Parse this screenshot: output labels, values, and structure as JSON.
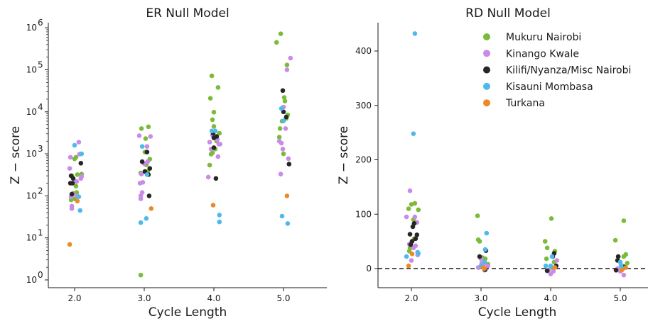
{
  "chart_data": [
    {
      "type": "scatter",
      "title": "ER Null Model",
      "xlabel": "Cycle Length",
      "ylabel": "Z − score",
      "yscale": "log",
      "ylim": [
        0.7,
        1400000
      ],
      "xlim": [
        1.5,
        5.5
      ],
      "x_ticks": [
        2.0,
        3.0,
        4.0,
        5.0
      ],
      "x_tick_labels": [
        "2.0",
        "3.0",
        "4.0",
        "5.0"
      ],
      "y_ticks": [
        1,
        10,
        100,
        1000,
        10000,
        100000,
        1000000
      ],
      "y_tick_labels": [
        [
          "10",
          "0"
        ],
        [
          "10",
          "1"
        ],
        [
          "10",
          "2"
        ],
        [
          "10",
          "3"
        ],
        [
          "10",
          "4"
        ],
        [
          "10",
          "5"
        ],
        [
          "10",
          "6"
        ]
      ],
      "grid": false,
      "series": [
        {
          "name": "Mukuru Nairobi",
          "color": "#7bbb3a",
          "points": [
            [
              1.95,
              80
            ],
            [
              2.0,
              85
            ],
            [
              1.98,
              115
            ],
            [
              2.03,
              120
            ],
            [
              2.02,
              170
            ],
            [
              1.96,
              300
            ],
            [
              2.04,
              320
            ],
            [
              2.0,
              760
            ],
            [
              2.02,
              830
            ],
            [
              2.1,
              330
            ],
            [
              2.95,
              1.3
            ],
            [
              2.96,
              4000
            ],
            [
              3.06,
              4400
            ],
            [
              3.02,
              2300
            ],
            [
              3.01,
              1100
            ],
            [
              2.95,
              350
            ],
            [
              3.05,
              380
            ],
            [
              3.03,
              550
            ],
            [
              3.08,
              750
            ],
            [
              3.94,
              540
            ],
            [
              3.96,
              980
            ],
            [
              3.98,
              1050
            ],
            [
              4.02,
              1300
            ],
            [
              4.04,
              2000
            ],
            [
              4.08,
              3100
            ],
            [
              4.0,
              4500
            ],
            [
              3.98,
              6500
            ],
            [
              4.0,
              9800
            ],
            [
              3.95,
              21000
            ],
            [
              4.06,
              38000
            ],
            [
              3.97,
              72000
            ],
            [
              4.9,
              450000
            ],
            [
              4.96,
              720000
            ],
            [
              5.05,
              130000
            ],
            [
              5.02,
              18000
            ],
            [
              5.01,
              22000
            ],
            [
              4.98,
              6000
            ],
            [
              5.04,
              7000
            ],
            [
              5.06,
              8500
            ],
            [
              4.95,
              4000
            ],
            [
              4.94,
              2500
            ],
            [
              5.0,
              1000
            ]
          ]
        },
        {
          "name": "Kinango Kwale",
          "color": "#c98be8",
          "points": [
            [
              1.96,
              50
            ],
            [
              1.96,
              57
            ],
            [
              1.95,
              95
            ],
            [
              1.98,
              110
            ],
            [
              2.04,
              100
            ],
            [
              2.03,
              220
            ],
            [
              2.09,
              260
            ],
            [
              2.1,
              290
            ],
            [
              2.07,
              980
            ],
            [
              2.06,
              1900
            ],
            [
              1.94,
              830
            ],
            [
              1.93,
              450
            ],
            [
              2.95,
              85
            ],
            [
              2.95,
              100
            ],
            [
              2.97,
              120
            ],
            [
              2.94,
              200
            ],
            [
              2.96,
              330
            ],
            [
              3.0,
              580
            ],
            [
              3.05,
              650
            ],
            [
              3.04,
              1500
            ],
            [
              2.93,
              2700
            ],
            [
              3.09,
              2600
            ],
            [
              2.98,
              210
            ],
            [
              3.92,
              280
            ],
            [
              3.94,
              1900
            ],
            [
              3.96,
              1300
            ],
            [
              4.06,
              860
            ],
            [
              4.09,
              1700
            ],
            [
              4.07,
              1700
            ],
            [
              3.98,
              2800
            ],
            [
              4.05,
              2200
            ],
            [
              4.96,
              330
            ],
            [
              5.07,
              770
            ],
            [
              4.94,
              2000
            ],
            [
              5.03,
              4000
            ],
            [
              5.0,
              13000
            ],
            [
              5.05,
              100000
            ],
            [
              5.1,
              190000
            ],
            [
              4.97,
              1800
            ],
            [
              4.99,
              1300
            ]
          ]
        },
        {
          "name": "Kilifi/Nyanza/Misc Nairobi",
          "color": "#262626",
          "points": [
            [
              1.94,
              200
            ],
            [
              1.95,
              300
            ],
            [
              1.97,
              200
            ],
            [
              1.98,
              260
            ],
            [
              1.96,
              110
            ],
            [
              2.09,
              600
            ],
            [
              3.04,
              1100
            ],
            [
              2.97,
              650
            ],
            [
              3.01,
              380
            ],
            [
              3.06,
              320
            ],
            [
              3.08,
              450
            ],
            [
              3.07,
              100
            ],
            [
              4.03,
              260
            ],
            [
              4.04,
              2600
            ],
            [
              3.99,
              3100
            ],
            [
              4.0,
              2400
            ],
            [
              4.0,
              1400
            ],
            [
              4.99,
              32000
            ],
            [
              5.0,
              10000
            ],
            [
              5.04,
              7500
            ],
            [
              5.08,
              570
            ]
          ]
        },
        {
          "name": "Kisauni Mombasa",
          "color": "#4fb9ec",
          "points": [
            [
              2.0,
              1600
            ],
            [
              2.1,
              1000
            ],
            [
              2.06,
              95
            ],
            [
              2.08,
              45
            ],
            [
              2.95,
              23
            ],
            [
              3.03,
              29
            ],
            [
              2.97,
              1500
            ],
            [
              3.04,
              320
            ],
            [
              3.97,
              3500
            ],
            [
              4.02,
              3500
            ],
            [
              4.08,
              35
            ],
            [
              4.08,
              24
            ],
            [
              4.98,
              33
            ],
            [
              5.06,
              22
            ],
            [
              4.97,
              12000
            ],
            [
              5.0,
              6100
            ]
          ]
        },
        {
          "name": "Turkana",
          "color": "#ec8a2a",
          "points": [
            [
              1.93,
              7
            ],
            [
              2.04,
              75
            ],
            [
              3.1,
              50
            ],
            [
              3.99,
              60
            ],
            [
              5.05,
              100
            ]
          ]
        }
      ]
    },
    {
      "type": "scatter",
      "title": "RD Null Model",
      "xlabel": "Cycle Length",
      "ylabel": "Z − score",
      "ylim": [
        -35,
        455
      ],
      "xlim": [
        1.5,
        5.5
      ],
      "x_ticks": [
        2.0,
        3.0,
        4.0,
        5.0
      ],
      "x_tick_labels": [
        "2.0",
        "3.0",
        "4.0",
        "5.0"
      ],
      "y_ticks": [
        0,
        100,
        200,
        300,
        400
      ],
      "y_tick_labels": [
        "0",
        "100",
        "200",
        "300",
        "400"
      ],
      "reference_line": {
        "y": 0,
        "style": "dashed"
      },
      "grid": false,
      "legend": "top-right",
      "series": [
        {
          "name": "Mukuru Nairobi",
          "color": "#7bbb3a",
          "points": [
            [
              1.96,
              110
            ],
            [
              2.05,
              120
            ],
            [
              2.0,
              118
            ],
            [
              2.1,
              108
            ],
            [
              2.03,
              90
            ],
            [
              2.04,
              55
            ],
            [
              1.98,
              38
            ],
            [
              1.97,
              32
            ],
            [
              2.95,
              97
            ],
            [
              2.96,
              53
            ],
            [
              2.98,
              50
            ],
            [
              3.02,
              20
            ],
            [
              3.06,
              18
            ],
            [
              3.1,
              8
            ],
            [
              2.97,
              2
            ],
            [
              3.92,
              50
            ],
            [
              3.95,
              38
            ],
            [
              4.01,
              92
            ],
            [
              4.06,
              32
            ],
            [
              3.94,
              18
            ],
            [
              4.05,
              12
            ],
            [
              4.0,
              2
            ],
            [
              4.93,
              52
            ],
            [
              5.05,
              88
            ],
            [
              5.08,
              26
            ],
            [
              5.05,
              22
            ],
            [
              5.1,
              10
            ],
            [
              5.03,
              5
            ]
          ]
        },
        {
          "name": "Kinango Kwale",
          "color": "#c98be8",
          "points": [
            [
              1.98,
              143
            ],
            [
              1.93,
              95
            ],
            [
              2.05,
              95
            ],
            [
              2.08,
              85
            ],
            [
              1.97,
              45
            ],
            [
              2.03,
              38
            ],
            [
              2.06,
              42
            ],
            [
              2.0,
              15
            ],
            [
              2.09,
              25
            ],
            [
              3.0,
              18
            ],
            [
              3.01,
              10
            ],
            [
              3.04,
              8
            ],
            [
              2.96,
              2
            ],
            [
              3.1,
              5
            ],
            [
              3.05,
              -3
            ],
            [
              4.0,
              -10
            ],
            [
              3.97,
              -3
            ],
            [
              4.04,
              -5
            ],
            [
              4.09,
              15
            ],
            [
              5.05,
              -12
            ],
            [
              5.0,
              -5
            ],
            [
              4.96,
              0
            ],
            [
              5.02,
              2
            ]
          ]
        },
        {
          "name": "Kilifi/Nyanza/Misc Nairobi",
          "color": "#262626",
          "points": [
            [
              2.04,
              83
            ],
            [
              2.02,
              77
            ],
            [
              1.98,
              63
            ],
            [
              2.08,
              62
            ],
            [
              2.06,
              55
            ],
            [
              2.01,
              50
            ],
            [
              1.99,
              44
            ],
            [
              3.07,
              33
            ],
            [
              2.98,
              22
            ],
            [
              3.06,
              -2
            ],
            [
              4.05,
              28
            ],
            [
              4.03,
              22
            ],
            [
              3.95,
              -4
            ],
            [
              4.08,
              5
            ],
            [
              4.97,
              22
            ],
            [
              4.96,
              15
            ],
            [
              4.94,
              -3
            ],
            [
              5.06,
              3
            ]
          ]
        },
        {
          "name": "Kisauni Mombasa",
          "color": "#4fb9ec",
          "points": [
            [
              2.05,
              432
            ],
            [
              2.03,
              248
            ],
            [
              2.09,
              30
            ],
            [
              2.1,
              28
            ],
            [
              1.93,
              22
            ],
            [
              3.08,
              65
            ],
            [
              3.06,
              35
            ],
            [
              3.05,
              12
            ],
            [
              3.0,
              5
            ],
            [
              3.93,
              5
            ],
            [
              4.02,
              22
            ],
            [
              4.0,
              5
            ],
            [
              5.01,
              6
            ],
            [
              5.0,
              12
            ],
            [
              5.04,
              0
            ]
          ]
        },
        {
          "name": "Turkana",
          "color": "#ec8a2a",
          "points": [
            [
              2.01,
              27
            ],
            [
              1.96,
              5
            ],
            [
              3.03,
              2
            ],
            [
              3.05,
              0
            ],
            [
              4.06,
              2
            ],
            [
              5.08,
              2
            ],
            [
              5.02,
              -3
            ]
          ]
        }
      ]
    }
  ]
}
